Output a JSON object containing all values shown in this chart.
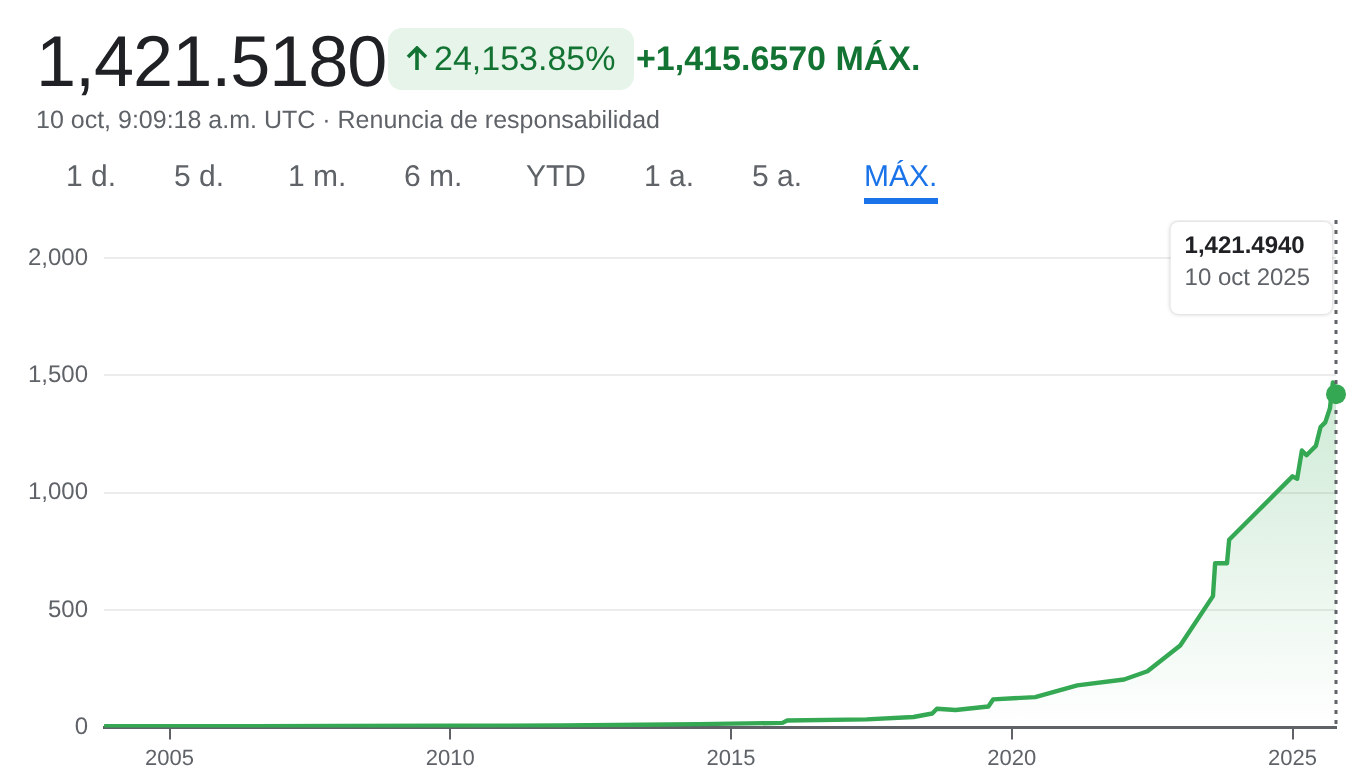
{
  "chart_data": {
    "type": "area",
    "title": "1,421.5180",
    "subtitle": "10 oct, 9:09:18 a.m. UTC · Renuncia de responsabilidad",
    "annotations": [
      "24,153.85%",
      "+1,415.6570 MÁX.",
      "1,421.4940",
      "10 oct 2025",
      "1 d.",
      "5 d.",
      "1 m.",
      "6 m.",
      "YTD",
      "1 a.",
      "5 a.",
      "MÁX."
    ],
    "x": [
      "2003-11",
      "2006-01",
      "2008-01",
      "2010-01",
      "2012-01",
      "2013-06",
      "2014-06",
      "2015-12",
      "2016-01",
      "2017-06",
      "2018-04",
      "2018-08",
      "2018-09",
      "2019-01",
      "2019-08",
      "2019-09",
      "2020-06",
      "2021-03",
      "2022-01",
      "2022-06",
      "2023-01",
      "2023-08",
      "2023-08-15",
      "2023-11",
      "2023-11-15",
      "2025-01",
      "2025-02",
      "2025-03",
      "2025-04",
      "2025-05",
      "2025-06",
      "2025-07",
      "2025-08",
      "2025-09",
      "2025-09-20",
      "2025-10-10"
    ],
    "series": [
      {
        "color": "#34a853",
        "values": [
          6,
          6,
          7,
          8,
          9,
          12,
          15,
          20,
          30,
          35,
          45,
          60,
          80,
          75,
          90,
          120,
          130,
          180,
          205,
          240,
          350,
          560,
          700,
          700,
          800,
          1070,
          1060,
          1180,
          1160,
          1180,
          1200,
          1280,
          1300,
          1360,
          1470,
          1420
        ]
      }
    ],
    "xlim": [
      "2003-11",
      "2025-10-10"
    ],
    "xticks": [
      "2005",
      "2010",
      "2015",
      "2020",
      "2025"
    ],
    "ylim": [
      0,
      2000
    ],
    "yticks": [
      0,
      500,
      {
        "value": 1000,
        "label": "1,000"
      },
      {
        "value": 1500,
        "label": "1,500"
      },
      {
        "value": 2000,
        "label": "2,000"
      }
    ],
    "grid": "y",
    "legend": false,
    "marker": "none",
    "line_style": "solid",
    "ref_lines": [
      {
        "axis": "x",
        "value": "2025-10-10",
        "label": null,
        "line_style": "dotted",
        "color": "#5f6368"
      }
    ]
  }
}
